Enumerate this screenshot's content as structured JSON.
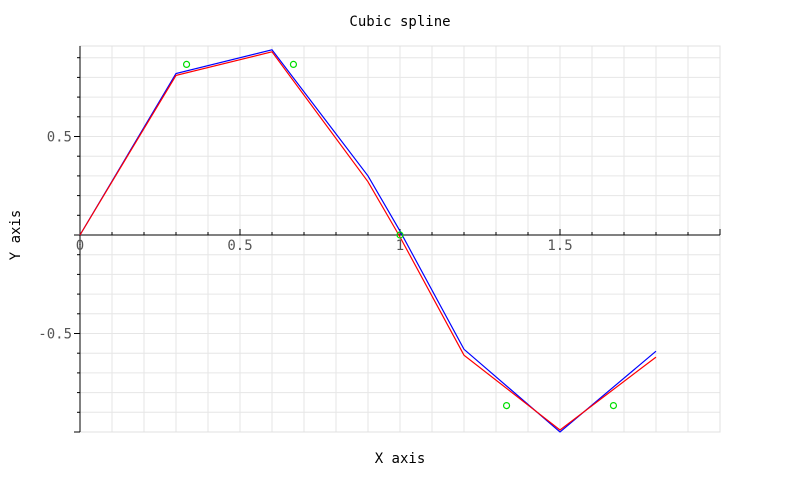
{
  "chart_data": {
    "type": "line",
    "title": "Cubic spline",
    "xlabel": "X axis",
    "ylabel": "Y axis",
    "xlim": [
      0,
      2.0
    ],
    "ylim": [
      -1.0,
      0.95
    ],
    "grid": true,
    "xticks": [
      0,
      0.5,
      1,
      1.5
    ],
    "xtick_labels": [
      "0",
      "0.5",
      "1",
      "1.5"
    ],
    "yticks": [
      0.5,
      -0.5
    ],
    "ytick_labels": [
      "0.5",
      "-0.5"
    ],
    "series": [
      {
        "style": "line",
        "color": "#0000ff",
        "x": [
          0,
          0.3,
          0.6,
          0.9,
          1.0,
          1.2,
          1.5,
          1.8
        ],
        "y": [
          0,
          0.82,
          0.94,
          0.3,
          0.02,
          -0.58,
          -1.0,
          -0.59
        ]
      },
      {
        "style": "line",
        "color": "#ff0000",
        "x": [
          0,
          0.3,
          0.6,
          0.9,
          1.0,
          1.2,
          1.5,
          1.8
        ],
        "y": [
          0,
          0.81,
          0.93,
          0.27,
          -0.01,
          -0.61,
          -0.99,
          -0.62
        ]
      },
      {
        "style": "markers",
        "color": "#00dd00",
        "x": [
          0.333,
          0.667,
          1.0,
          1.333,
          1.667
        ],
        "y": [
          0.866,
          0.866,
          0.0,
          -0.866,
          -0.866
        ]
      }
    ]
  }
}
